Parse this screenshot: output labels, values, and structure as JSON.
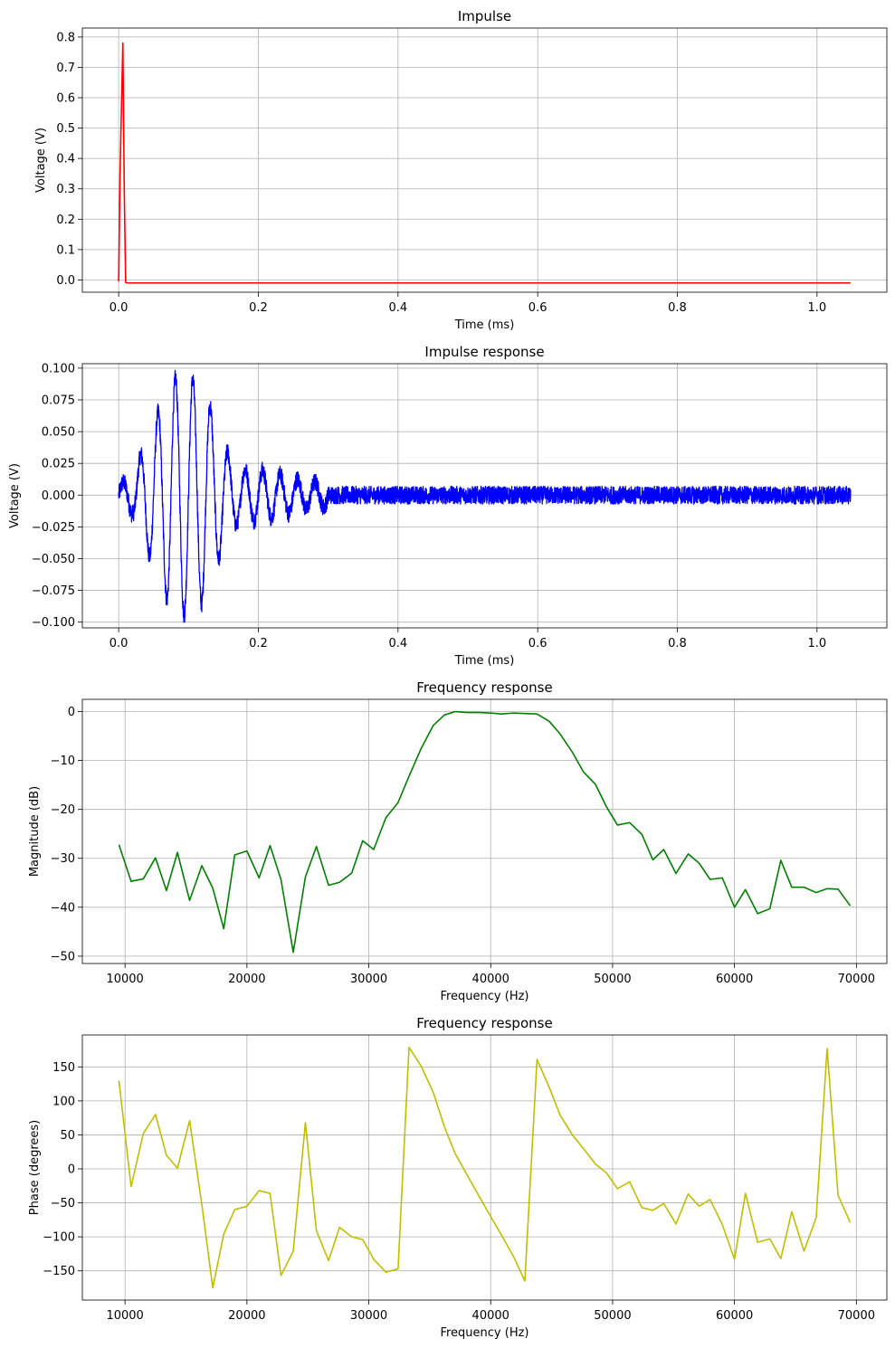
{
  "chart_data": [
    {
      "type": "line",
      "title": "Impulse",
      "xlabel": "Time (ms)",
      "ylabel": "Voltage (V)",
      "color": "#ff0000",
      "xlim": [
        -0.052,
        1.1
      ],
      "ylim": [
        -0.0405,
        0.8295
      ],
      "xticks": [
        0.0,
        0.2,
        0.4,
        0.6,
        0.8,
        1.0
      ],
      "xtick_labels": [
        "0.0",
        "0.2",
        "0.4",
        "0.6",
        "0.8",
        "1.0"
      ],
      "yticks": [
        0.0,
        0.1,
        0.2,
        0.3,
        0.4,
        0.5,
        0.6,
        0.7,
        0.8
      ],
      "ytick_labels": [
        "0.0",
        "0.1",
        "0.2",
        "0.3",
        "0.4",
        "0.5",
        "0.6",
        "0.7",
        "0.8"
      ],
      "grid": true,
      "series": [
        {
          "name": "impulse",
          "x": [
            0.0,
            0.002,
            0.006,
            0.008,
            0.01,
            0.012,
            1.048
          ],
          "y": [
            -0.005,
            0.35,
            0.78,
            0.3,
            -0.008,
            -0.01,
            -0.01
          ]
        }
      ]
    },
    {
      "type": "line",
      "title": "Impulse response",
      "xlabel": "Time (ms)",
      "ylabel": "Voltage (V)",
      "color": "#0000ff",
      "xlim": [
        -0.052,
        1.1
      ],
      "ylim": [
        -0.1045,
        0.1035
      ],
      "xticks": [
        0.0,
        0.2,
        0.4,
        0.6,
        0.8,
        1.0
      ],
      "xtick_labels": [
        "0.0",
        "0.2",
        "0.4",
        "0.6",
        "0.8",
        "1.0"
      ],
      "yticks": [
        -0.1,
        -0.075,
        -0.05,
        -0.025,
        0.0,
        0.025,
        0.05,
        0.075,
        0.1
      ],
      "ytick_labels": [
        "−0.100",
        "−0.075",
        "−0.050",
        "−0.025",
        "0.000",
        "0.025",
        "0.050",
        "0.075",
        "0.100"
      ],
      "grid": true,
      "signal_envelope": {
        "times": [
          0.0,
          0.02,
          0.03,
          0.045,
          0.06,
          0.075,
          0.09,
          0.105,
          0.12,
          0.135,
          0.15,
          0.165,
          0.18,
          0.2,
          0.22,
          0.24,
          0.26,
          0.3,
          1.048
        ],
        "amplitudes": [
          0.008,
          0.015,
          0.03,
          0.05,
          0.07,
          0.09,
          0.095,
          0.092,
          0.085,
          0.065,
          0.04,
          0.025,
          0.02,
          0.02,
          0.018,
          0.015,
          0.012,
          0.009,
          0.008
        ]
      },
      "carrier_frequency_khz": 40,
      "noise_amplitude": 0.007
    },
    {
      "type": "line",
      "title": "Frequency response",
      "xlabel": "Frequency (Hz)",
      "ylabel": "Magnitude (dB)",
      "color": "#008000",
      "xlim": [
        6500,
        72500
      ],
      "ylim": [
        -51.5,
        2.5
      ],
      "xticks": [
        10000,
        20000,
        30000,
        40000,
        50000,
        60000,
        70000
      ],
      "xtick_labels": [
        "10000",
        "20000",
        "30000",
        "40000",
        "50000",
        "60000",
        "70000"
      ],
      "yticks": [
        -50,
        -40,
        -30,
        -20,
        -10,
        0
      ],
      "ytick_labels": [
        "−50",
        "−40",
        "−30",
        "−20",
        "−10",
        "0"
      ],
      "grid": true,
      "series": [
        {
          "name": "magnitude",
          "x": [
            9500,
            10500,
            11500,
            12500,
            13400,
            14300,
            15300,
            16300,
            17200,
            18100,
            19000,
            20000,
            21000,
            21900,
            22800,
            23800,
            24800,
            25700,
            26700,
            27600,
            28600,
            29500,
            30400,
            31400,
            32400,
            33300,
            34300,
            35300,
            36200,
            37100,
            38100,
            39100,
            40000,
            40900,
            41900,
            42800,
            43800,
            44800,
            45700,
            46700,
            47600,
            48600,
            49500,
            50400,
            51400,
            52400,
            53300,
            54200,
            55200,
            56200,
            57100,
            58000,
            59000,
            60000,
            60900,
            61900,
            62900,
            63800,
            64700,
            65700,
            66700,
            67600,
            68500,
            69500
          ],
          "y": [
            -27.2,
            -34.7,
            -34.2,
            -29.9,
            -36.6,
            -28.8,
            -38.6,
            -31.5,
            -36.1,
            -44.4,
            -29.3,
            -28.5,
            -34.0,
            -27.4,
            -34.4,
            -49.2,
            -33.8,
            -27.6,
            -35.5,
            -34.9,
            -33.0,
            -26.4,
            -28.2,
            -21.7,
            -18.6,
            -13.2,
            -7.5,
            -2.8,
            -0.7,
            0.0,
            -0.2,
            -0.2,
            -0.3,
            -0.5,
            -0.3,
            -0.4,
            -0.5,
            -2.0,
            -4.6,
            -8.3,
            -12.3,
            -14.9,
            -19.5,
            -23.2,
            -22.7,
            -25.1,
            -30.3,
            -28.2,
            -33.1,
            -29.1,
            -31.0,
            -34.3,
            -34.0,
            -40.0,
            -36.4,
            -41.3,
            -40.3,
            -30.4,
            -35.9,
            -35.9,
            -37.0,
            -36.2,
            -36.3,
            -39.7
          ]
        }
      ]
    },
    {
      "type": "line",
      "title": "Frequency response",
      "xlabel": "Frequency (Hz)",
      "ylabel": "Phase (degrees)",
      "color": "#bfbf00",
      "xlim": [
        6500,
        72500
      ],
      "ylim": [
        -193,
        197
      ],
      "xticks": [
        10000,
        20000,
        30000,
        40000,
        50000,
        60000,
        70000
      ],
      "xtick_labels": [
        "10000",
        "20000",
        "30000",
        "40000",
        "50000",
        "60000",
        "70000"
      ],
      "yticks": [
        -150,
        -100,
        -50,
        0,
        50,
        100,
        150
      ],
      "ytick_labels": [
        "−150",
        "−100",
        "−50",
        "0",
        "50",
        "100",
        "150"
      ],
      "grid": true,
      "series": [
        {
          "name": "phase",
          "x": [
            9500,
            10500,
            11500,
            12500,
            13400,
            14300,
            15300,
            16300,
            17200,
            18100,
            19000,
            20000,
            21000,
            21900,
            22800,
            23800,
            24800,
            25700,
            26700,
            27600,
            28600,
            29500,
            30400,
            31400,
            32400,
            33300,
            34300,
            35300,
            36200,
            37100,
            38100,
            39100,
            40000,
            40900,
            41900,
            42800,
            43800,
            44800,
            45700,
            46700,
            47600,
            48600,
            49500,
            50400,
            51400,
            52400,
            53300,
            54200,
            55200,
            56200,
            57100,
            58000,
            59000,
            60000,
            60900,
            61900,
            62900,
            63800,
            64700,
            65700,
            66700,
            67600,
            68500,
            69500
          ],
          "y": [
            130,
            -26,
            52,
            80,
            20,
            1,
            71,
            -52,
            -175,
            -96,
            -60,
            -55,
            -32,
            -36,
            -157,
            -121,
            68,
            -91,
            -135,
            -86,
            -100,
            -104,
            -133,
            -152,
            -147,
            179,
            151,
            112,
            62,
            22,
            -10,
            -42,
            -70,
            -98,
            -130,
            -165,
            161,
            120,
            79,
            50,
            30,
            7,
            -6,
            -29,
            -19,
            -57,
            -61,
            -51,
            -81,
            -37,
            -55,
            -45,
            -82,
            -133,
            -36,
            -108,
            -103,
            -132,
            -63,
            -121,
            -72,
            177,
            -39,
            -79
          ]
        }
      ]
    }
  ]
}
